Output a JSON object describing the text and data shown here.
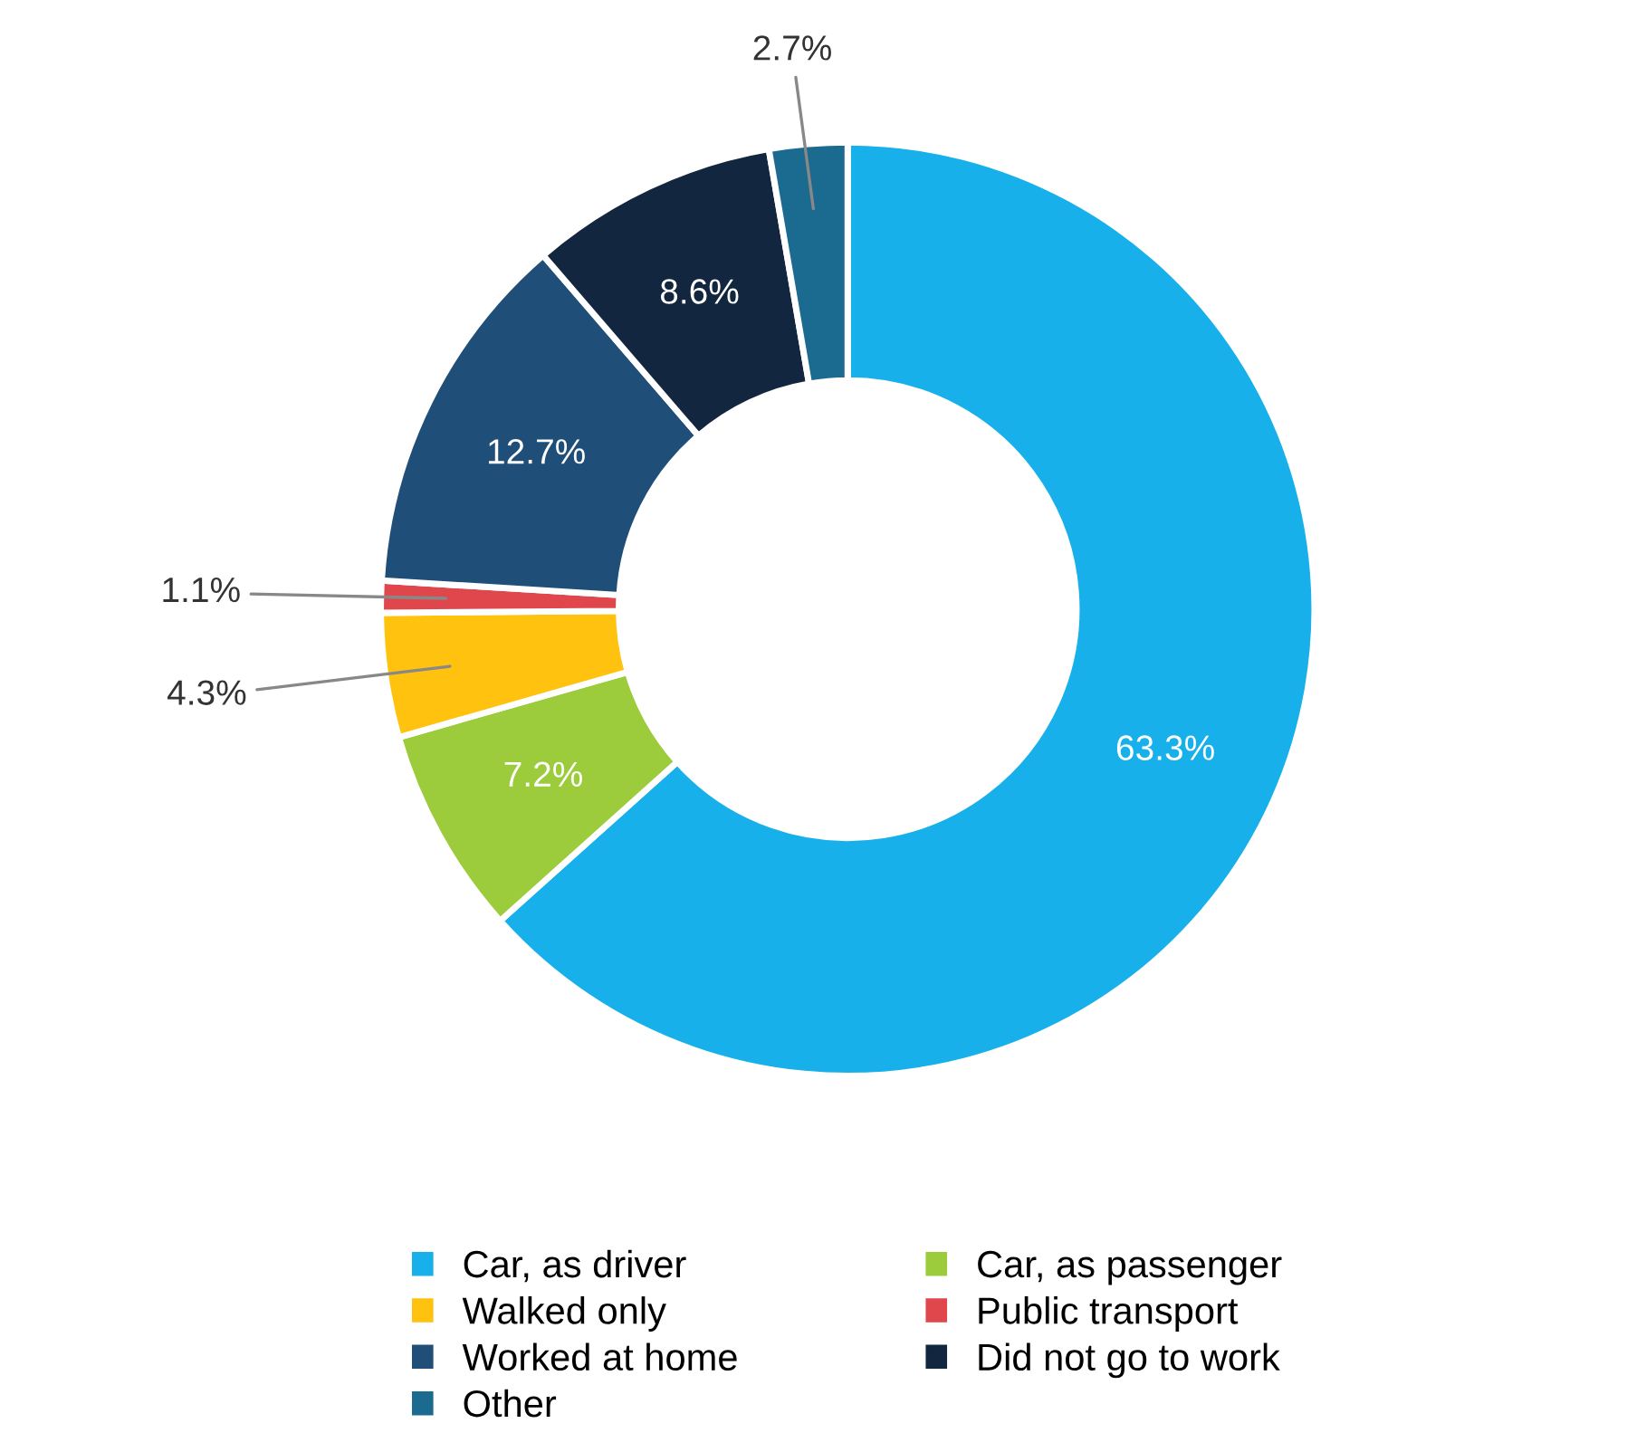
{
  "chart_data": {
    "type": "donut",
    "categories": [
      "Car, as driver",
      "Car, as passenger",
      "Walked only",
      "Public transport",
      "Worked at home",
      "Did not go to work",
      "Other"
    ],
    "values": [
      63.3,
      7.2,
      4.3,
      1.1,
      12.7,
      8.6,
      2.7
    ],
    "colors": [
      "#17b0ea",
      "#9ccb3b",
      "#ffc20e",
      "#e0474c",
      "#1f4e79",
      "#12263f",
      "#1b6a8f"
    ],
    "value_labels": [
      "63.3%",
      "7.2%",
      "4.3%",
      "1.1%",
      "12.7%",
      "8.6%",
      "2.7%"
    ],
    "legend": "bottom"
  }
}
